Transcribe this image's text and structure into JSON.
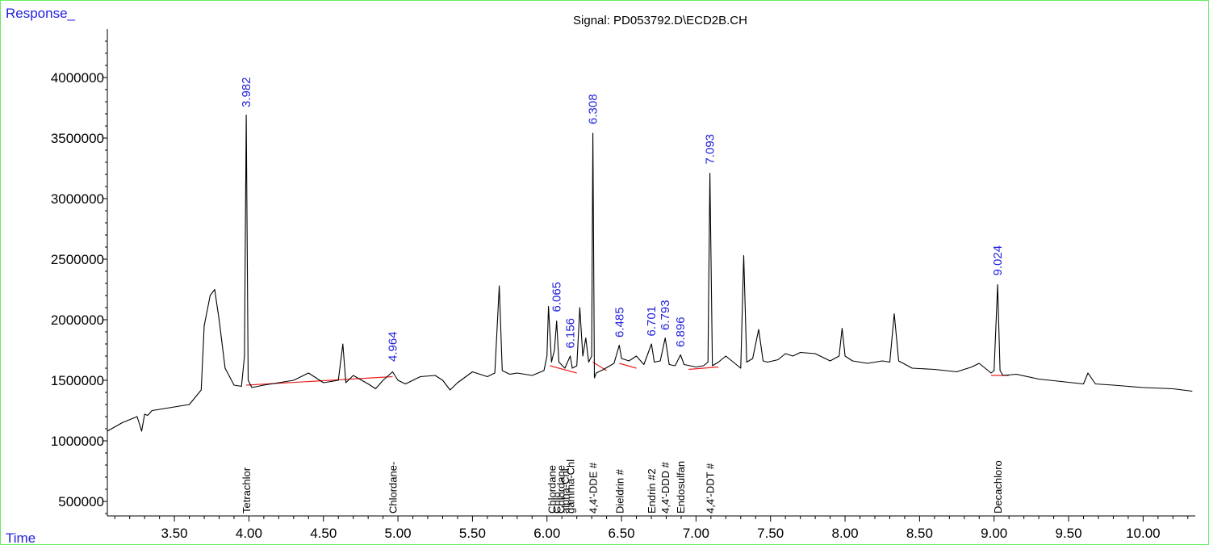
{
  "chart_data": {
    "type": "line",
    "title": "Signal: PD053792.D\\ECD2B.CH",
    "ylabel": "Response_",
    "xlabel": "Time",
    "xlim": [
      3.05,
      10.35
    ],
    "ylim": [
      380000,
      4400000
    ],
    "x_ticks": [
      "3.50",
      "4.00",
      "4.50",
      "5.00",
      "5.50",
      "6.00",
      "6.50",
      "7.00",
      "7.50",
      "8.00",
      "8.50",
      "9.00",
      "9.50",
      "10.00"
    ],
    "y_ticks": [
      "500000",
      "1000000",
      "1500000",
      "2000000",
      "2500000",
      "3000000",
      "3500000",
      "4000000"
    ],
    "peak_labels": [
      {
        "rt": "3.982",
        "x": 3.982,
        "y": 3700000
      },
      {
        "rt": "4.964",
        "x": 4.964,
        "y": 1600000
      },
      {
        "rt": "6.065",
        "x": 6.065,
        "y": 2010000
      },
      {
        "rt": "6.156",
        "x": 6.156,
        "y": 1710000
      },
      {
        "rt": "6.308",
        "x": 6.308,
        "y": 3560000
      },
      {
        "rt": "6.485",
        "x": 6.485,
        "y": 1800000
      },
      {
        "rt": "6.701",
        "x": 6.701,
        "y": 1810000
      },
      {
        "rt": "6.793",
        "x": 6.793,
        "y": 1860000
      },
      {
        "rt": "6.896",
        "x": 6.896,
        "y": 1720000
      },
      {
        "rt": "7.093",
        "x": 7.093,
        "y": 3230000
      },
      {
        "rt": "9.024",
        "x": 9.024,
        "y": 2310000
      }
    ],
    "compound_labels": [
      {
        "name": "Tetrachlor",
        "x": 3.982
      },
      {
        "name": "Chlordane-",
        "x": 4.964
      },
      {
        "name": "Chlordane",
        "x": 6.03
      },
      {
        "name": "Chlo",
        "x": 6.065
      },
      {
        "name": "Chlordane",
        "x": 6.09
      },
      {
        "name": "alpha-Chl",
        "x": 6.12
      },
      {
        "name": "gamma-Chl",
        "x": 6.156
      },
      {
        "name": "4,4'-DDE #",
        "x": 6.308
      },
      {
        "name": "Dieldrin #",
        "x": 6.485
      },
      {
        "name": "Endrin #2",
        "x": 6.701
      },
      {
        "name": "4,4'-DDD #",
        "x": 6.793
      },
      {
        "name": "Endosulfan",
        "x": 6.896
      },
      {
        "name": "4,4'-DDT #",
        "x": 7.093
      },
      {
        "name": "Decachloro",
        "x": 9.024
      }
    ],
    "baseline": [
      [
        3.982,
        1460000
      ],
      [
        4.964,
        1530000
      ],
      [
        6.02,
        1620000
      ],
      [
        6.2,
        1560000
      ],
      [
        6.308,
        1650000
      ],
      [
        6.4,
        1580000
      ],
      [
        6.485,
        1640000
      ],
      [
        6.6,
        1600000
      ],
      [
        6.95,
        1590000
      ],
      [
        7.15,
        1610000
      ],
      [
        8.98,
        1540000
      ],
      [
        9.1,
        1540000
      ]
    ],
    "series": [
      {
        "x": [
          3.05,
          3.15,
          3.25,
          3.28,
          3.3,
          3.32,
          3.35,
          3.45,
          3.6,
          3.68,
          3.7,
          3.74,
          3.77,
          3.8,
          3.84,
          3.9,
          3.95,
          3.97,
          3.982,
          3.995,
          4.02,
          4.1,
          4.2,
          4.3,
          4.4,
          4.5,
          4.6,
          4.63,
          4.65,
          4.7,
          4.8,
          4.85,
          4.9,
          4.964,
          5.0,
          5.05,
          5.15,
          5.25,
          5.3,
          5.35,
          5.4,
          5.5,
          5.6,
          5.65,
          5.68,
          5.7,
          5.75,
          5.8,
          5.9,
          5.98,
          6.0,
          6.01,
          6.03,
          6.05,
          6.065,
          6.08,
          6.12,
          6.156,
          6.17,
          6.2,
          6.22,
          6.24,
          6.26,
          6.28,
          6.3,
          6.308,
          6.318,
          6.33,
          6.38,
          6.45,
          6.485,
          6.5,
          6.55,
          6.6,
          6.65,
          6.701,
          6.72,
          6.76,
          6.793,
          6.82,
          6.86,
          6.896,
          6.92,
          6.96,
          7.0,
          7.05,
          7.08,
          7.093,
          7.11,
          7.15,
          7.2,
          7.25,
          7.3,
          7.32,
          7.34,
          7.38,
          7.42,
          7.45,
          7.48,
          7.55,
          7.6,
          7.65,
          7.7,
          7.8,
          7.9,
          7.96,
          7.98,
          8.0,
          8.05,
          8.15,
          8.25,
          8.3,
          8.33,
          8.36,
          8.45,
          8.6,
          8.75,
          8.85,
          8.9,
          8.98,
          9.0,
          9.024,
          9.04,
          9.06,
          9.15,
          9.3,
          9.45,
          9.6,
          9.63,
          9.68,
          9.8,
          10.0,
          10.2,
          10.33
        ],
        "y": [
          1080000,
          1150000,
          1200000,
          1080000,
          1220000,
          1210000,
          1250000,
          1270000,
          1300000,
          1420000,
          1950000,
          2200000,
          2250000,
          2000000,
          1600000,
          1460000,
          1450000,
          1700000,
          3690000,
          1500000,
          1440000,
          1460000,
          1480000,
          1500000,
          1560000,
          1480000,
          1500000,
          1800000,
          1480000,
          1540000,
          1470000,
          1430000,
          1500000,
          1570000,
          1500000,
          1470000,
          1530000,
          1540000,
          1500000,
          1420000,
          1480000,
          1570000,
          1530000,
          1560000,
          2280000,
          1580000,
          1550000,
          1560000,
          1540000,
          1580000,
          1700000,
          2110000,
          1650000,
          1750000,
          1990000,
          1650000,
          1600000,
          1700000,
          1600000,
          1620000,
          2100000,
          1700000,
          1850000,
          1650000,
          1700000,
          3540000,
          1520000,
          1560000,
          1590000,
          1640000,
          1790000,
          1680000,
          1660000,
          1700000,
          1630000,
          1800000,
          1650000,
          1660000,
          1850000,
          1630000,
          1620000,
          1710000,
          1630000,
          1620000,
          1610000,
          1620000,
          1650000,
          3210000,
          1620000,
          1650000,
          1700000,
          1650000,
          1600000,
          2530000,
          1650000,
          1680000,
          1920000,
          1660000,
          1650000,
          1670000,
          1720000,
          1700000,
          1730000,
          1720000,
          1660000,
          1700000,
          1930000,
          1700000,
          1660000,
          1640000,
          1660000,
          1650000,
          2050000,
          1660000,
          1600000,
          1590000,
          1570000,
          1610000,
          1640000,
          1560000,
          1580000,
          2290000,
          1580000,
          1540000,
          1550000,
          1510000,
          1490000,
          1470000,
          1560000,
          1470000,
          1460000,
          1440000,
          1430000,
          1410000
        ]
      }
    ]
  }
}
